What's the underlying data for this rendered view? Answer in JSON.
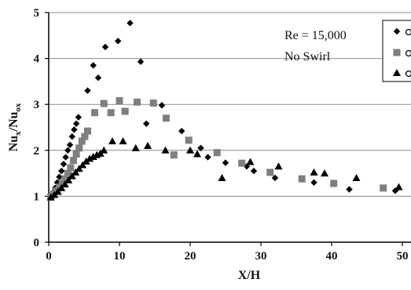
{
  "chart_data": {
    "type": "scatter",
    "title": "",
    "xlabel": "X/H",
    "ylabel": "Nu_x/Nu_ox",
    "xlim": [
      0,
      50
    ],
    "ylim": [
      0,
      5
    ],
    "xticks": [
      "0",
      "10",
      "20",
      "30",
      "40",
      "50"
    ],
    "yticks": [
      "0",
      "1",
      "2",
      "3",
      "4",
      "5"
    ],
    "grid": "horizontal",
    "legend_position": "top-right (clipped)",
    "annotations": [
      {
        "text": "Re = 15,000"
      },
      {
        "text": "No Swirl"
      }
    ],
    "series": [
      {
        "marker": "diamond",
        "color": "#000000",
        "points": [
          [
            0.3,
            1.0
          ],
          [
            0.6,
            1.08
          ],
          [
            0.9,
            1.18
          ],
          [
            1.2,
            1.3
          ],
          [
            1.5,
            1.42
          ],
          [
            1.8,
            1.55
          ],
          [
            2.1,
            1.7
          ],
          [
            2.4,
            1.85
          ],
          [
            2.7,
            2.0
          ],
          [
            3.0,
            2.12
          ],
          [
            3.3,
            2.3
          ],
          [
            3.6,
            2.45
          ],
          [
            3.9,
            2.58
          ],
          [
            4.2,
            2.72
          ],
          [
            5.5,
            3.3
          ],
          [
            6.3,
            3.85
          ],
          [
            7.0,
            3.58
          ],
          [
            8.0,
            4.25
          ],
          [
            9.8,
            4.38
          ],
          [
            11.5,
            4.77
          ],
          [
            13.0,
            3.93
          ],
          [
            13.8,
            2.58
          ],
          [
            16.0,
            2.98
          ],
          [
            18.8,
            2.42
          ],
          [
            21.5,
            2.05
          ],
          [
            22.5,
            1.85
          ],
          [
            25.0,
            1.73
          ],
          [
            28.0,
            1.65
          ],
          [
            29.0,
            1.55
          ],
          [
            32.0,
            1.4
          ],
          [
            37.5,
            1.3
          ],
          [
            42.5,
            1.15
          ],
          [
            49.0,
            1.12
          ]
        ]
      },
      {
        "marker": "square",
        "color": "#7f7f7f",
        "points": [
          [
            0.3,
            0.98
          ],
          [
            0.7,
            1.05
          ],
          [
            1.1,
            1.12
          ],
          [
            1.5,
            1.2
          ],
          [
            1.9,
            1.28
          ],
          [
            2.3,
            1.38
          ],
          [
            2.7,
            1.5
          ],
          [
            3.1,
            1.62
          ],
          [
            3.5,
            1.78
          ],
          [
            3.9,
            1.92
          ],
          [
            4.3,
            2.05
          ],
          [
            4.7,
            2.2
          ],
          [
            5.1,
            2.3
          ],
          [
            5.5,
            2.42
          ],
          [
            6.5,
            2.82
          ],
          [
            7.8,
            3.02
          ],
          [
            8.8,
            2.82
          ],
          [
            10.0,
            3.08
          ],
          [
            10.8,
            2.85
          ],
          [
            12.5,
            3.05
          ],
          [
            14.8,
            3.03
          ],
          [
            16.6,
            2.7
          ],
          [
            19.8,
            2.22
          ],
          [
            17.7,
            1.9
          ],
          [
            23.8,
            1.95
          ],
          [
            27.3,
            1.72
          ],
          [
            31.3,
            1.52
          ],
          [
            35.8,
            1.38
          ],
          [
            40.3,
            1.28
          ],
          [
            47.3,
            1.18
          ]
        ]
      },
      {
        "marker": "triangle",
        "color": "#000000",
        "points": [
          [
            0.3,
            0.98
          ],
          [
            0.8,
            1.03
          ],
          [
            1.3,
            1.1
          ],
          [
            1.8,
            1.18
          ],
          [
            2.3,
            1.26
          ],
          [
            2.8,
            1.35
          ],
          [
            3.3,
            1.44
          ],
          [
            3.8,
            1.52
          ],
          [
            4.3,
            1.6
          ],
          [
            4.8,
            1.68
          ],
          [
            5.3,
            1.76
          ],
          [
            5.8,
            1.82
          ],
          [
            6.3,
            1.86
          ],
          [
            6.8,
            1.9
          ],
          [
            7.3,
            1.93
          ],
          [
            7.8,
            2.0
          ],
          [
            9.0,
            2.2
          ],
          [
            10.5,
            2.2
          ],
          [
            12.3,
            2.05
          ],
          [
            14.0,
            2.1
          ],
          [
            16.5,
            2.0
          ],
          [
            20.0,
            2.0
          ],
          [
            21.0,
            1.92
          ],
          [
            24.5,
            1.4
          ],
          [
            28.5,
            1.75
          ],
          [
            32.5,
            1.65
          ],
          [
            37.5,
            1.52
          ],
          [
            39.0,
            1.5
          ],
          [
            43.5,
            1.4
          ],
          [
            49.5,
            1.2
          ]
        ]
      }
    ]
  }
}
